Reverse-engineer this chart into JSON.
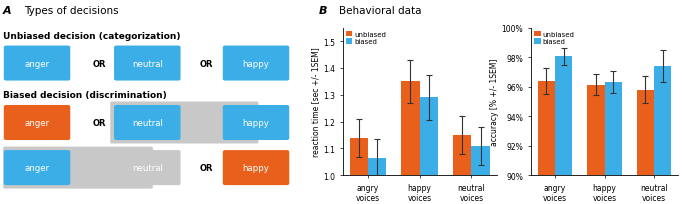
{
  "panel_a_title_bold": "A",
  "panel_a_title_normal": "  Types of decisions",
  "panel_b_title_bold": "B",
  "panel_b_title_normal": "  Behavioral data",
  "orange_color": "#E8601C",
  "blue_color": "#3BAEE8",
  "gray_color": "#C8C8C8",
  "unbiased_label": "Unbiased decision (categorization)",
  "biased_label": "Biased decision (discrimination)",
  "unbiased_row": [
    "anger",
    "neutral",
    "happy"
  ],
  "biased_row1": [
    "anger",
    "neutral",
    "happy"
  ],
  "biased_row1_colors": [
    "orange",
    "blue",
    "blue"
  ],
  "biased_row2": [
    "anger",
    "neutral",
    "happy"
  ],
  "biased_row2_colors": [
    "blue",
    "gray",
    "orange"
  ],
  "rt_categories": [
    "angry\nvoices",
    "happy\nvoices",
    "neutral\nvoices"
  ],
  "rt_unbiased": [
    1.14,
    1.35,
    1.15
  ],
  "rt_biased": [
    1.065,
    1.29,
    1.11
  ],
  "rt_unbiased_err": [
    0.07,
    0.08,
    0.07
  ],
  "rt_biased_err": [
    0.07,
    0.085,
    0.07
  ],
  "rt_ylim": [
    1.0,
    1.55
  ],
  "rt_yticks": [
    1.0,
    1.1,
    1.2,
    1.3,
    1.4,
    1.5
  ],
  "rt_ylabel": "reaction time [sec +/- 1SEM]",
  "acc_categories": [
    "angry\nvoices",
    "happy\nvoices",
    "neutral\nvoices"
  ],
  "acc_unbiased": [
    96.4,
    96.15,
    95.8
  ],
  "acc_biased": [
    98.05,
    96.35,
    97.4
  ],
  "acc_unbiased_err": [
    0.9,
    0.7,
    0.9
  ],
  "acc_biased_err": [
    0.6,
    0.75,
    1.1
  ],
  "acc_ylim": [
    90,
    100
  ],
  "acc_yticks": [
    90,
    92,
    94,
    96,
    98,
    100
  ],
  "acc_yticklabels": [
    "90%",
    "92%",
    "94%",
    "96%",
    "98%",
    "100%"
  ],
  "acc_ylabel": "accuracy [% +/- 1SEM]",
  "legend_unbiased": "unbiased",
  "legend_biased": "biased"
}
